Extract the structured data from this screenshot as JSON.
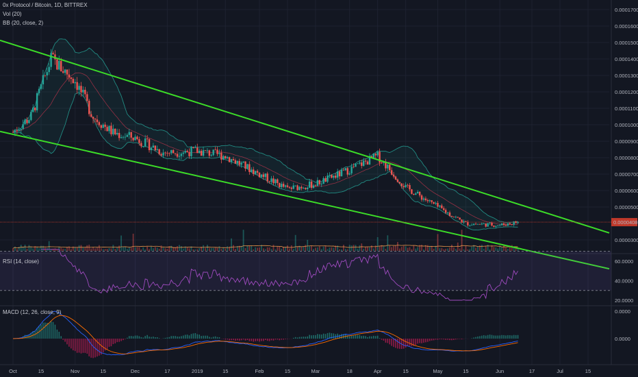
{
  "header": {
    "title": "0x Protocol / Bitcoin, 1D, BITTREX",
    "vol": "Vol (20)",
    "bb": "BB (20, close, 2)",
    "rsi": "RSI (14, close)",
    "macd": "MACD (12, 26, close, 9)"
  },
  "colors": {
    "background": "#131722",
    "trendline": "#3cdc28",
    "up": "#26a69a",
    "down": "#ef5350",
    "rsi": "#a04bc0",
    "macd": "#2962ff",
    "signal": "#ff6d00",
    "bb": "#26a69a"
  },
  "price_axis": {
    "ticks": [
      "0.00017000",
      "0.00016000",
      "0.00015000",
      "0.00014000",
      "0.00013000",
      "0.00012000",
      "0.00011000",
      "0.00010000",
      "0.00009000",
      "0.00008000",
      "0.00007000",
      "0.00006000",
      "0.00005000",
      "0.00003000"
    ],
    "current": "0.00004080"
  },
  "rsi_axis": {
    "ticks": [
      "60.0000",
      "40.0000",
      "20.0000"
    ]
  },
  "macd_axis": {
    "ticks": [
      "0.0000",
      "0.0000"
    ]
  },
  "time_axis": {
    "ticks": [
      "Oct",
      "15",
      "Nov",
      "15",
      "Dec",
      "17",
      "2019",
      "15",
      "Feb",
      "15",
      "Mar",
      "18",
      "Apr",
      "15",
      "May",
      "15",
      "Jun",
      "17",
      "Jul",
      "15"
    ]
  },
  "chart_data": {
    "type": "candlestick",
    "title": "0x Protocol / Bitcoin, 1D, BITTREX",
    "ylim": [
      2e-05,
      0.00017
    ],
    "close_anchors": {
      "dates": [
        "2018-10-01",
        "2018-10-10",
        "2018-10-20",
        "2018-11-01",
        "2018-11-10",
        "2018-11-20",
        "2018-12-01",
        "2018-12-15",
        "2019-01-01",
        "2019-01-15",
        "2019-02-01",
        "2019-02-15",
        "2019-03-01",
        "2019-03-15",
        "2019-04-01",
        "2019-04-15",
        "2019-05-01",
        "2019-05-15",
        "2019-06-01",
        "2019-06-10"
      ],
      "close": [
        9.55e-05,
        0.000105,
        0.00014,
        0.000127,
        0.000105,
        9.5e-05,
        9.2e-05,
        8.3e-05,
        8.4e-05,
        8.1e-05,
        7e-05,
        6.1e-05,
        6.4e-05,
        7.1e-05,
        8.1e-05,
        6.2e-05,
        5e-05,
        4e-05,
        3.9e-05,
        4.08e-05
      ]
    },
    "trendlines": [
      {
        "name": "upper",
        "points": [
          [
            "2018-09-28",
            0.00015
          ],
          [
            "2019-07-12",
            3.95e-05
          ]
        ]
      },
      {
        "name": "lower",
        "points": [
          [
            "2018-09-28",
            9.5e-05
          ],
          [
            "2019-06-28",
            2e-05
          ]
        ]
      }
    ],
    "rsi_range": [
      20,
      70
    ],
    "current_price": 4.08e-05
  }
}
